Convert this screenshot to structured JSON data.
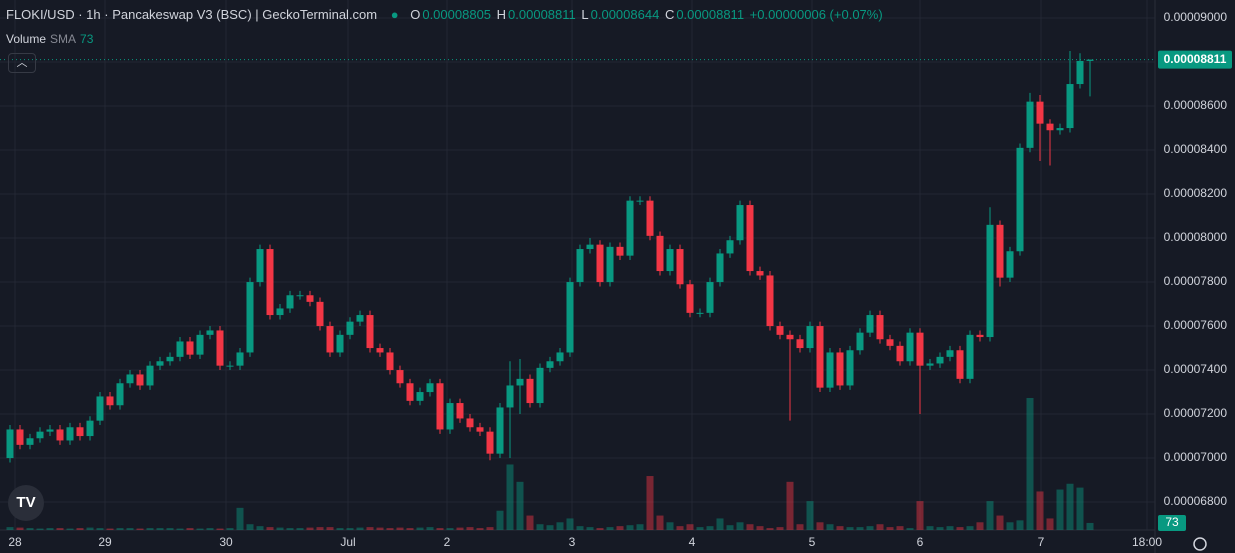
{
  "chart_data": {
    "type": "candlestick",
    "title": "FLOKI/USD · 1h · Pancakeswap V3 (BSC) | GeckoTerminal.com",
    "ohlc_labels": [
      "O",
      "H",
      "L",
      "C"
    ],
    "change": "+0.00000006 (+0.07%)",
    "up_color": "#089981",
    "down_color": "#f23645",
    "grid": true,
    "ylim": [
      6.673e-05,
      9.082e-05
    ],
    "yticks": [
      {
        "value": 6.8e-05,
        "label": "0.00006800"
      },
      {
        "value": 7e-05,
        "label": "0.00007000"
      },
      {
        "value": 7.2e-05,
        "label": "0.00007200"
      },
      {
        "value": 7.4e-05,
        "label": "0.00007400"
      },
      {
        "value": 7.6e-05,
        "label": "0.00007600"
      },
      {
        "value": 7.8e-05,
        "label": "0.00007800"
      },
      {
        "value": 8e-05,
        "label": "0.00008000"
      },
      {
        "value": 8.2e-05,
        "label": "0.00008200"
      },
      {
        "value": 8.4e-05,
        "label": "0.00008400"
      },
      {
        "value": 8.6e-05,
        "label": "0.00008600"
      },
      {
        "value": 8.8e-05,
        "label": "0.00008800"
      },
      {
        "value": 9e-05,
        "label": "0.00009000"
      }
    ],
    "xlim": [
      -1,
      114.5
    ],
    "xticks": [
      {
        "value": 0.5,
        "label": "28"
      },
      {
        "value": 9.5,
        "label": "29"
      },
      {
        "value": 21.6,
        "label": "30"
      },
      {
        "value": 33.8,
        "label": "Jul"
      },
      {
        "value": 43.7,
        "label": "2"
      },
      {
        "value": 56.2,
        "label": "3"
      },
      {
        "value": 68.2,
        "label": "4"
      },
      {
        "value": 80.2,
        "label": "5"
      },
      {
        "value": 91,
        "label": "6"
      },
      {
        "value": 103.1,
        "label": "7"
      },
      {
        "value": 113.7,
        "label": "18:00"
      }
    ],
    "open": [
      7e-05,
      7.13e-05,
      7.06e-05,
      7.09e-05,
      7.12e-05,
      7.13e-05,
      7.08e-05,
      7.14e-05,
      7.1e-05,
      7.17e-05,
      7.28e-05,
      7.24e-05,
      7.34e-05,
      7.38e-05,
      7.33e-05,
      7.42e-05,
      7.44e-05,
      7.46e-05,
      7.53e-05,
      7.47e-05,
      7.56e-05,
      7.58e-05,
      7.42e-05,
      7.42e-05,
      7.48e-05,
      7.8e-05,
      7.95e-05,
      7.65e-05,
      7.68e-05,
      7.74e-05,
      7.74e-05,
      7.71e-05,
      7.6e-05,
      7.48e-05,
      7.56e-05,
      7.62e-05,
      7.65e-05,
      7.5e-05,
      7.48e-05,
      7.4e-05,
      7.34e-05,
      7.26e-05,
      7.3e-05,
      7.34e-05,
      7.13e-05,
      7.25e-05,
      7.18e-05,
      7.14e-05,
      7.12e-05,
      7.02e-05,
      7.23e-05,
      7.33e-05,
      7.36e-05,
      7.25e-05,
      7.41e-05,
      7.44e-05,
      7.48e-05,
      7.8e-05,
      7.95e-05,
      7.97e-05,
      7.8e-05,
      7.96e-05,
      7.92e-05,
      8.17e-05,
      8.17e-05,
      8.01e-05,
      7.85e-05,
      7.95e-05,
      7.79e-05,
      7.66e-05,
      7.66e-05,
      7.8e-05,
      7.93e-05,
      7.99e-05,
      8.15e-05,
      7.85e-05,
      7.83e-05,
      7.6e-05,
      7.56e-05,
      7.54e-05,
      7.5e-05,
      7.6e-05,
      7.32e-05,
      7.48e-05,
      7.33e-05,
      7.49e-05,
      7.57e-05,
      7.65e-05,
      7.54e-05,
      7.51e-05,
      7.44e-05,
      7.57e-05,
      7.42e-05,
      7.43e-05,
      7.46e-05,
      7.49e-05,
      7.36e-05,
      7.56e-05,
      7.55e-05,
      8.06e-05,
      7.82e-05,
      7.94e-05,
      8.41e-05,
      8.62e-05,
      8.52e-05,
      8.49e-05,
      8.5e-05,
      8.7e-05,
      8.805e-05
    ],
    "high": [
      7.15e-05,
      7.15e-05,
      7.11e-05,
      7.14e-05,
      7.15e-05,
      7.15e-05,
      7.16e-05,
      7.16e-05,
      7.19e-05,
      7.3e-05,
      7.3e-05,
      7.36e-05,
      7.4e-05,
      7.4e-05,
      7.44e-05,
      7.46e-05,
      7.48e-05,
      7.55e-05,
      7.55e-05,
      7.58e-05,
      7.6e-05,
      7.6e-05,
      7.44e-05,
      7.5e-05,
      7.82e-05,
      7.97e-05,
      7.97e-05,
      7.7e-05,
      7.76e-05,
      7.76e-05,
      7.76e-05,
      7.73e-05,
      7.62e-05,
      7.58e-05,
      7.64e-05,
      7.67e-05,
      7.67e-05,
      7.52e-05,
      7.5e-05,
      7.42e-05,
      7.36e-05,
      7.32e-05,
      7.36e-05,
      7.36e-05,
      7.27e-05,
      7.27e-05,
      7.2e-05,
      7.16e-05,
      7.14e-05,
      7.25e-05,
      7.44e-05,
      7.45e-05,
      7.38e-05,
      7.43e-05,
      7.46e-05,
      7.5e-05,
      7.82e-05,
      7.97e-05,
      8e-05,
      7.99e-05,
      7.98e-05,
      7.98e-05,
      8.19e-05,
      8.19e-05,
      8.19e-05,
      8.03e-05,
      7.97e-05,
      7.97e-05,
      7.81e-05,
      7.68e-05,
      7.82e-05,
      7.95e-05,
      8.01e-05,
      8.17e-05,
      8.17e-05,
      7.87e-05,
      7.85e-05,
      7.62e-05,
      7.58e-05,
      7.56e-05,
      7.62e-05,
      7.62e-05,
      7.5e-05,
      7.5e-05,
      7.51e-05,
      7.59e-05,
      7.67e-05,
      7.67e-05,
      7.56e-05,
      7.53e-05,
      7.59e-05,
      7.59e-05,
      7.45e-05,
      7.48e-05,
      7.51e-05,
      7.51e-05,
      7.58e-05,
      7.58e-05,
      8.14e-05,
      8.08e-05,
      7.96e-05,
      8.43e-05,
      8.66e-05,
      8.65e-05,
      8.54e-05,
      8.52e-05,
      8.85e-05,
      8.84e-05,
      8.811e-05
    ],
    "low": [
      6.98e-05,
      7.04e-05,
      7.04e-05,
      7.07e-05,
      7.1e-05,
      7.06e-05,
      7.06e-05,
      7.08e-05,
      7.08e-05,
      7.15e-05,
      7.22e-05,
      7.22e-05,
      7.32e-05,
      7.31e-05,
      7.31e-05,
      7.4e-05,
      7.42e-05,
      7.44e-05,
      7.45e-05,
      7.45e-05,
      7.54e-05,
      7.4e-05,
      7.4e-05,
      7.4e-05,
      7.46e-05,
      7.78e-05,
      7.63e-05,
      7.63e-05,
      7.66e-05,
      7.72e-05,
      7.69e-05,
      7.58e-05,
      7.46e-05,
      7.46e-05,
      7.54e-05,
      7.6e-05,
      7.48e-05,
      7.46e-05,
      7.38e-05,
      7.32e-05,
      7.24e-05,
      7.24e-05,
      7.28e-05,
      7.11e-05,
      7.11e-05,
      7.16e-05,
      7.12e-05,
      7.1e-05,
      6.99e-05,
      7e-05,
      7e-05,
      7.2e-05,
      7.23e-05,
      7.23e-05,
      7.39e-05,
      7.42e-05,
      7.46e-05,
      7.78e-05,
      7.93e-05,
      7.78e-05,
      7.78e-05,
      7.9e-05,
      7.9e-05,
      8.15e-05,
      7.99e-05,
      7.83e-05,
      7.83e-05,
      7.77e-05,
      7.64e-05,
      7.64e-05,
      7.64e-05,
      7.78e-05,
      7.91e-05,
      7.97e-05,
      7.83e-05,
      7.81e-05,
      7.58e-05,
      7.54e-05,
      7.17e-05,
      7.48e-05,
      7.48e-05,
      7.3e-05,
      7.3e-05,
      7.31e-05,
      7.31e-05,
      7.47e-05,
      7.55e-05,
      7.52e-05,
      7.49e-05,
      7.42e-05,
      7.42e-05,
      7.2e-05,
      7.4e-05,
      7.41e-05,
      7.44e-05,
      7.34e-05,
      7.34e-05,
      7.53e-05,
      7.53e-05,
      7.78e-05,
      7.8e-05,
      7.92e-05,
      8.39e-05,
      8.35e-05,
      8.33e-05,
      8.47e-05,
      8.48e-05,
      8.68e-05,
      8.644e-05
    ],
    "close": [
      7.13e-05,
      7.06e-05,
      7.09e-05,
      7.12e-05,
      7.13e-05,
      7.08e-05,
      7.14e-05,
      7.1e-05,
      7.17e-05,
      7.28e-05,
      7.24e-05,
      7.34e-05,
      7.38e-05,
      7.33e-05,
      7.42e-05,
      7.44e-05,
      7.46e-05,
      7.53e-05,
      7.47e-05,
      7.56e-05,
      7.58e-05,
      7.42e-05,
      7.42e-05,
      7.48e-05,
      7.8e-05,
      7.95e-05,
      7.65e-05,
      7.68e-05,
      7.74e-05,
      7.74e-05,
      7.71e-05,
      7.6e-05,
      7.48e-05,
      7.56e-05,
      7.62e-05,
      7.65e-05,
      7.5e-05,
      7.48e-05,
      7.4e-05,
      7.34e-05,
      7.26e-05,
      7.3e-05,
      7.34e-05,
      7.13e-05,
      7.25e-05,
      7.18e-05,
      7.14e-05,
      7.12e-05,
      7.02e-05,
      7.23e-05,
      7.33e-05,
      7.36e-05,
      7.25e-05,
      7.41e-05,
      7.44e-05,
      7.48e-05,
      7.8e-05,
      7.95e-05,
      7.97e-05,
      7.8e-05,
      7.96e-05,
      7.92e-05,
      8.17e-05,
      8.17e-05,
      8.01e-05,
      7.85e-05,
      7.95e-05,
      7.79e-05,
      7.66e-05,
      7.66e-05,
      7.8e-05,
      7.93e-05,
      7.99e-05,
      8.15e-05,
      7.85e-05,
      7.83e-05,
      7.6e-05,
      7.56e-05,
      7.54e-05,
      7.5e-05,
      7.6e-05,
      7.32e-05,
      7.48e-05,
      7.33e-05,
      7.49e-05,
      7.57e-05,
      7.65e-05,
      7.54e-05,
      7.51e-05,
      7.44e-05,
      7.57e-05,
      7.42e-05,
      7.43e-05,
      7.46e-05,
      7.49e-05,
      7.36e-05,
      7.56e-05,
      7.55e-05,
      8.06e-05,
      7.82e-05,
      7.94e-05,
      8.41e-05,
      8.62e-05,
      8.52e-05,
      8.49e-05,
      8.5e-05,
      8.7e-05,
      8.805e-05,
      8.811e-05
    ],
    "volume": {
      "name": "Volume",
      "sma_label": "SMA",
      "sma_value": 73,
      "ylim": [
        0,
        5500
      ],
      "values": [
        30,
        25,
        20,
        15,
        20,
        20,
        15,
        20,
        25,
        20,
        15,
        20,
        20,
        15,
        20,
        20,
        20,
        15,
        20,
        15,
        20,
        15,
        20,
        230,
        60,
        40,
        30,
        25,
        20,
        20,
        25,
        30,
        30,
        20,
        20,
        25,
        30,
        25,
        20,
        25,
        20,
        25,
        30,
        20,
        20,
        25,
        30,
        20,
        30,
        200,
        680,
        500,
        150,
        60,
        50,
        80,
        120,
        40,
        30,
        20,
        30,
        40,
        50,
        60,
        560,
        150,
        80,
        40,
        60,
        30,
        40,
        120,
        50,
        80,
        60,
        40,
        20,
        30,
        500,
        60,
        300,
        80,
        60,
        40,
        30,
        30,
        40,
        60,
        30,
        40,
        20,
        300,
        40,
        30,
        40,
        30,
        40,
        80,
        300,
        150,
        80,
        100,
        1370,
        400,
        120,
        420,
        480,
        440,
        73
      ]
    }
  }
}
